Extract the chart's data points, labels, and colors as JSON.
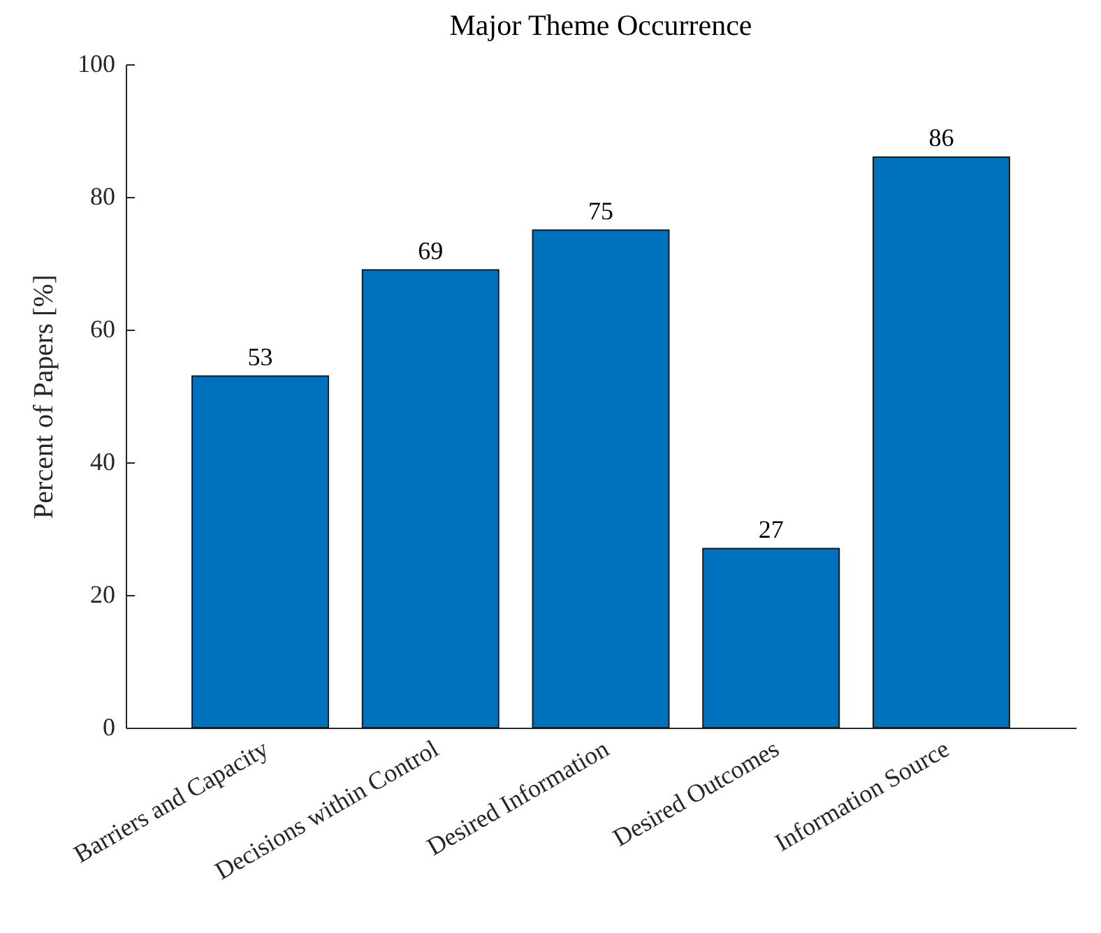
{
  "chart_data": {
    "type": "bar",
    "title": "Major Theme Occurrence",
    "ylabel": "Percent of Papers [%]",
    "categories": [
      "Barriers and Capacity",
      "Decisions within Control",
      "Desired Information",
      "Desired Outcomes",
      "Information Source"
    ],
    "values": [
      53,
      69,
      75,
      27,
      86
    ],
    "color": "#0072bd",
    "ylim": [
      0,
      100
    ],
    "yticks": [
      0,
      20,
      40,
      60,
      80,
      100
    ],
    "data_labels": true
  }
}
